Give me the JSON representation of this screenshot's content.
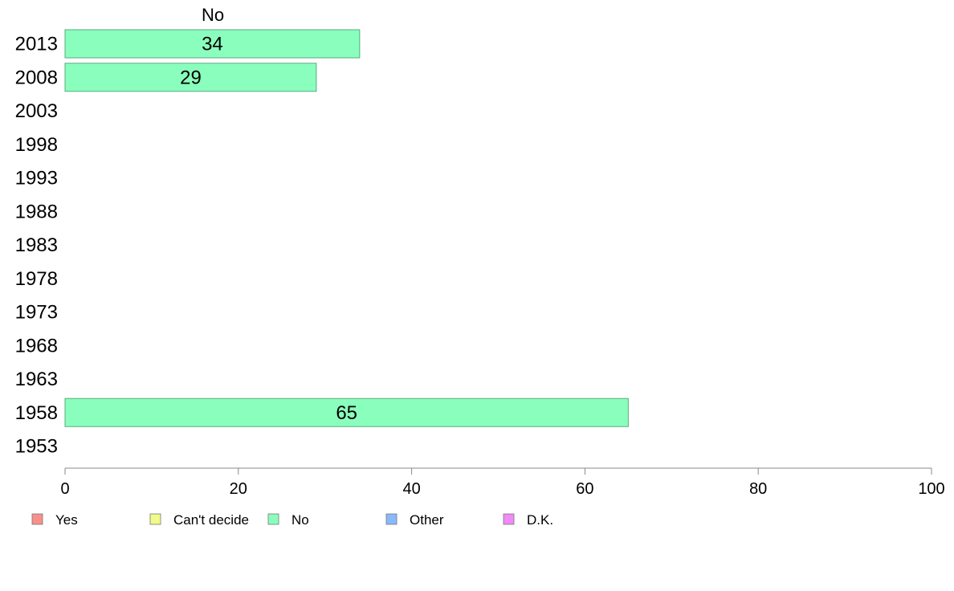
{
  "chart_data": {
    "type": "bar",
    "orientation": "horizontal",
    "header": "No",
    "categories": [
      "2013",
      "2008",
      "2003",
      "1998",
      "1993",
      "1988",
      "1983",
      "1978",
      "1973",
      "1968",
      "1963",
      "1958",
      "1953"
    ],
    "series": [
      {
        "name": "No",
        "values": [
          34,
          29,
          null,
          null,
          null,
          null,
          null,
          null,
          null,
          null,
          null,
          65,
          null
        ]
      }
    ],
    "xlim": [
      0,
      100
    ],
    "xticks": [
      0,
      20,
      40,
      60,
      80,
      100
    ],
    "grid": false,
    "legend": {
      "placement": "bottom-left",
      "entries": [
        {
          "label": "Yes",
          "color": "#f8908a"
        },
        {
          "label": "Can't decide",
          "color": "#f0fb8a"
        },
        {
          "label": "No",
          "color": "#8affbd"
        },
        {
          "label": "Other",
          "color": "#8ab9fb"
        },
        {
          "label": "D.K.",
          "color": "#f08af8"
        }
      ]
    },
    "colors": {
      "bar_fill": "#8affbd",
      "bar_stroke": "#5aaa80",
      "axis": "#888888"
    }
  }
}
